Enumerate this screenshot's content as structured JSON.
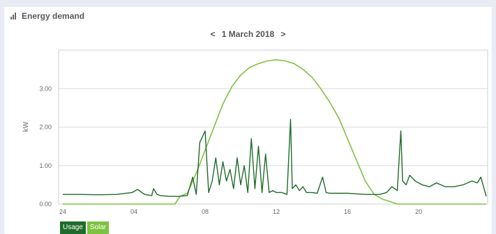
{
  "header": {
    "title": "Energy demand",
    "icon": "bar-chart-icon"
  },
  "date_nav": {
    "prev": "<",
    "date": "1 March 2018",
    "next": ">"
  },
  "colors": {
    "usage": "#1f6b2b",
    "solar": "#7ec242",
    "grid": "#dcdcdc"
  },
  "chart_data": {
    "type": "line",
    "title": "",
    "xlabel": "",
    "ylabel": "kW",
    "x_tick_labels": [
      "24",
      "04",
      "08",
      "12",
      "16",
      "20"
    ],
    "x_ticks_hours": [
      0,
      4,
      8,
      12,
      16,
      20
    ],
    "xlim_hours": [
      0,
      23.8
    ],
    "ylim": [
      0,
      4.0
    ],
    "y_ticks": [
      0.0,
      1.0,
      2.0,
      3.0
    ],
    "y_tick_labels": [
      "0.00",
      "1.00",
      "2.00",
      "3.00"
    ],
    "grid": true,
    "series": [
      {
        "name": "Usage",
        "color": "#1f6b2b",
        "x": [
          0,
          1,
          2,
          3,
          3.9,
          4.2,
          4.6,
          5.0,
          5.1,
          5.3,
          5.5,
          6,
          6.5,
          7.0,
          7.3,
          7.5,
          7.7,
          8.0,
          8.2,
          8.4,
          8.6,
          8.8,
          9.0,
          9.2,
          9.4,
          9.6,
          9.8,
          10.0,
          10.2,
          10.4,
          10.6,
          10.8,
          11.0,
          11.2,
          11.4,
          11.6,
          11.8,
          12.0,
          12.3,
          12.6,
          12.8,
          12.9,
          13.1,
          13.3,
          13.5,
          13.7,
          14.0,
          14.3,
          14.6,
          14.8,
          15.0,
          15.5,
          16,
          17,
          17.8,
          18.2,
          18.5,
          18.8,
          19.0,
          19.1,
          19.3,
          19.5,
          19.8,
          20.2,
          20.6,
          21.0,
          21.5,
          22.0,
          22.5,
          23.0,
          23.3,
          23.5,
          23.8
        ],
        "values": [
          0.25,
          0.25,
          0.24,
          0.25,
          0.3,
          0.38,
          0.25,
          0.22,
          0.4,
          0.25,
          0.22,
          0.2,
          0.2,
          0.22,
          0.7,
          0.25,
          1.6,
          1.9,
          0.3,
          0.6,
          1.2,
          0.5,
          1.1,
          0.6,
          0.9,
          0.4,
          1.2,
          0.5,
          1.0,
          0.3,
          1.7,
          0.4,
          1.5,
          0.3,
          1.3,
          0.3,
          0.35,
          0.3,
          0.3,
          0.25,
          2.2,
          0.4,
          0.5,
          0.35,
          0.45,
          0.3,
          0.3,
          0.28,
          0.7,
          0.3,
          0.28,
          0.28,
          0.28,
          0.25,
          0.25,
          0.3,
          0.45,
          0.35,
          1.9,
          0.6,
          0.5,
          0.75,
          0.6,
          0.5,
          0.45,
          0.55,
          0.45,
          0.45,
          0.5,
          0.6,
          0.55,
          0.7,
          0.2
        ]
      },
      {
        "name": "Solar",
        "color": "#7ec242",
        "x": [
          0,
          6.3,
          6.6,
          7.0,
          7.5,
          8.0,
          8.5,
          9.0,
          9.5,
          10.0,
          10.5,
          11.0,
          11.5,
          12.0,
          12.5,
          13.0,
          13.5,
          14.0,
          14.5,
          15.0,
          15.5,
          16.0,
          16.5,
          17.0,
          17.5,
          18.0,
          18.5,
          18.8,
          23.8
        ],
        "values": [
          0.0,
          0.0,
          0.2,
          0.28,
          0.8,
          1.4,
          2.0,
          2.6,
          3.05,
          3.35,
          3.55,
          3.65,
          3.72,
          3.75,
          3.72,
          3.65,
          3.5,
          3.3,
          3.0,
          2.65,
          2.25,
          1.7,
          1.15,
          0.6,
          0.25,
          0.12,
          0.05,
          0.0,
          0.0
        ]
      }
    ]
  },
  "legend": {
    "usage_label": "Usage",
    "solar_label": "Solar"
  }
}
